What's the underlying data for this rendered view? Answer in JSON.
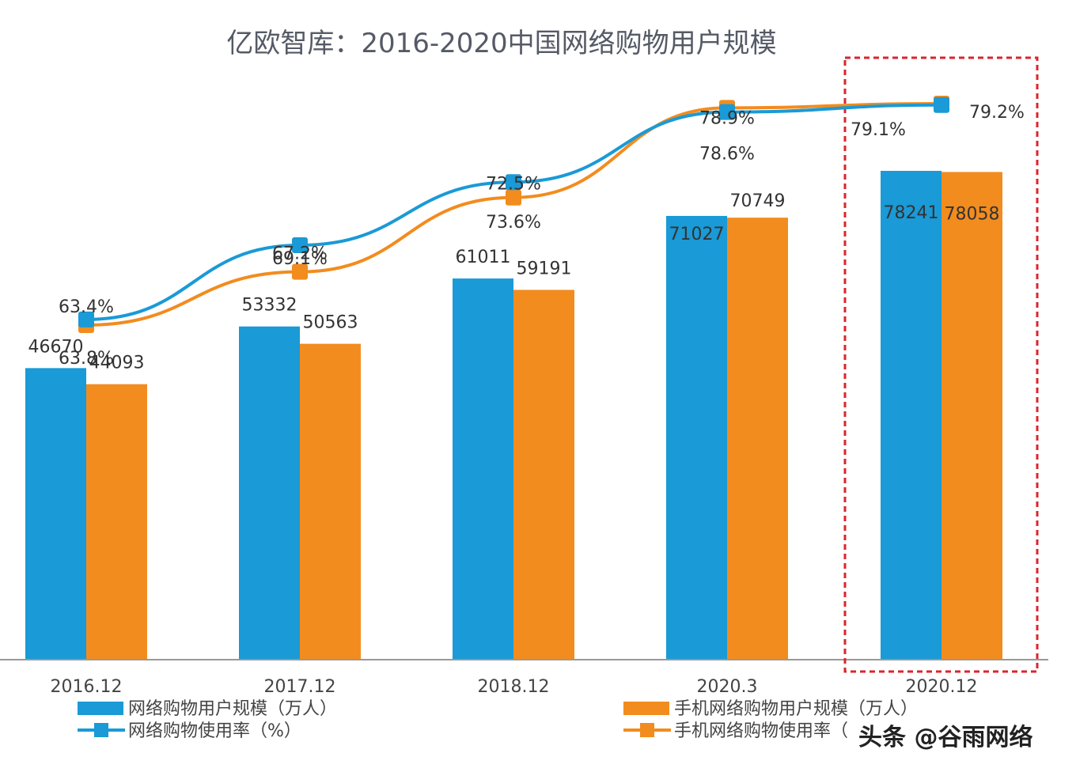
{
  "chart_data": {
    "type": "bar",
    "title": "亿欧智库：2016-2020中国网络购物用户规模",
    "categories": [
      "2016.12",
      "2017.12",
      "2018.12",
      "2020.3",
      "2020.12"
    ],
    "bar_series": [
      {
        "name": "网络购物用户规模（万人）",
        "color": "#1a9ad6",
        "values": [
          46670,
          53332,
          61011,
          71027,
          78241
        ]
      },
      {
        "name": "手机网络购物用户规模（万人）",
        "color": "#f28c1e",
        "values": [
          44093,
          50563,
          59191,
          70749,
          78058
        ]
      }
    ],
    "line_series": [
      {
        "name": "网络购物使用率（%）",
        "color": "#1a9ad6",
        "values": [
          63.8,
          69.1,
          73.6,
          78.6,
          79.1
        ],
        "labels": [
          "63.8%",
          "69.1%",
          "73.6%",
          "78.6%",
          "79.1%"
        ]
      },
      {
        "name": "手机网络购物使用率（%）",
        "color": "#f28c1e",
        "values": [
          63.4,
          67.2,
          72.5,
          78.9,
          79.2
        ],
        "labels": [
          "63.4%",
          "67.2%",
          "72.5%",
          "78.9%",
          "79.2%"
        ]
      }
    ],
    "bar_value_labels": {
      "s0": [
        "46670",
        "53332",
        "61011",
        "71027",
        "78241"
      ],
      "s1": [
        "44093",
        "50563",
        "59191",
        "70749",
        "78058"
      ]
    },
    "bar_ylim": [
      0,
      100000
    ],
    "line_ylim": [
      35,
      82
    ],
    "highlight_category": "2020.12",
    "highlight_color": "#d9262c",
    "grid": false,
    "legend_position": "bottom"
  },
  "legend_labels": {
    "s0": "网络购物用户规模（万人）",
    "s1": "手机网络购物用户规模（万人）",
    "l0": "网络购物使用率（%）",
    "l1": "手机网络购物使用率（"
  },
  "watermark": "头条 @谷雨网络"
}
